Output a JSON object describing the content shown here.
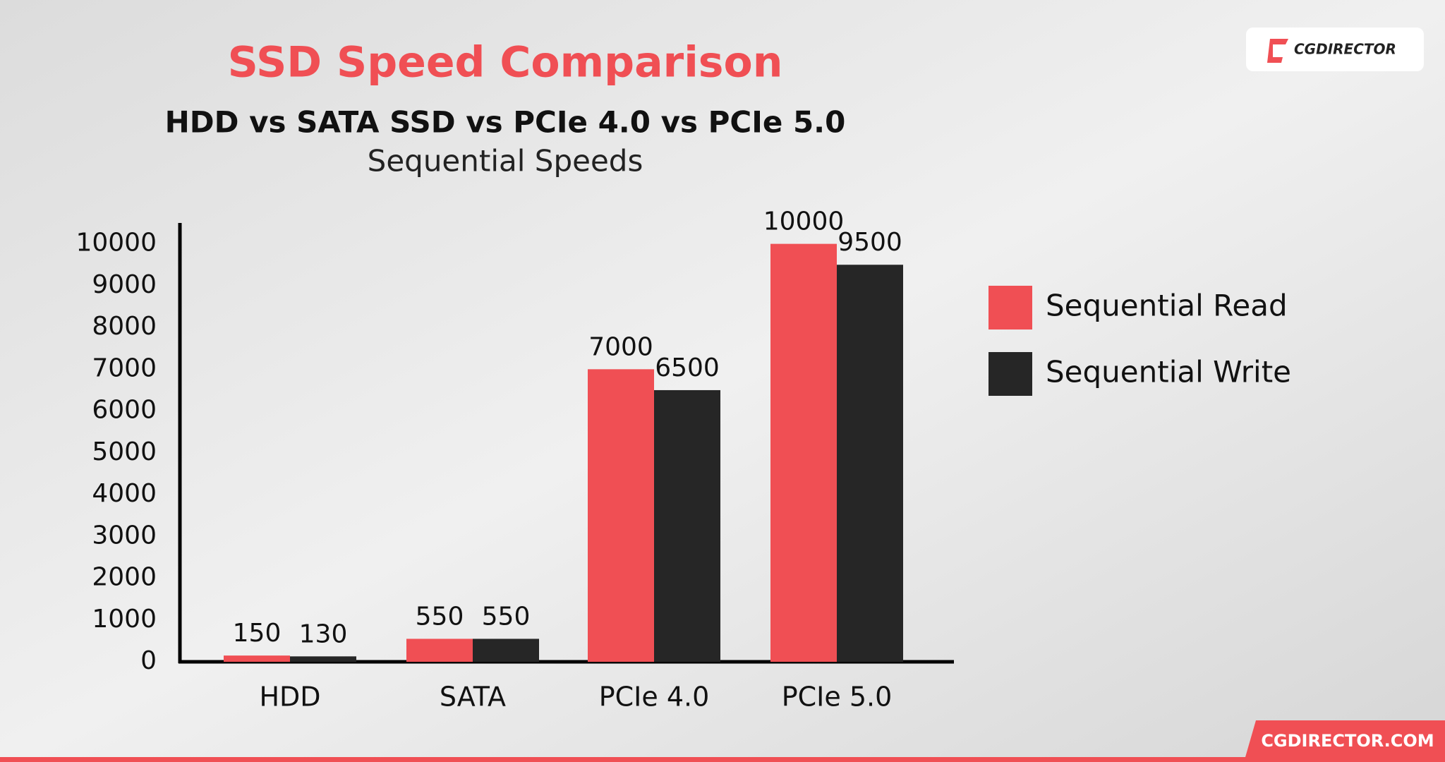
{
  "chart_data": {
    "type": "bar",
    "title": "SSD Speed Comparison",
    "subtitle": "HDD vs SATA SSD vs PCIe 4.0 vs PCIe 5.0",
    "subtitle2": "Sequential Speeds",
    "categories": [
      "HDD",
      "SATA",
      "PCIe 4.0",
      "PCIe 5.0"
    ],
    "series": [
      {
        "name": "Sequential Read",
        "color": "#f04f54",
        "values": [
          150,
          550,
          7000,
          10000
        ]
      },
      {
        "name": "Sequential Write",
        "color": "#262626",
        "values": [
          130,
          550,
          6500,
          9500
        ]
      }
    ],
    "ylim": [
      0,
      10500
    ],
    "yticks": [
      0,
      1000,
      2000,
      3000,
      4000,
      5000,
      6000,
      7000,
      8000,
      9000,
      10000
    ],
    "grid": false,
    "legend": "right"
  },
  "branding": {
    "logo": "CGDIRECTOR",
    "footer": "CGDIRECTOR.COM"
  }
}
